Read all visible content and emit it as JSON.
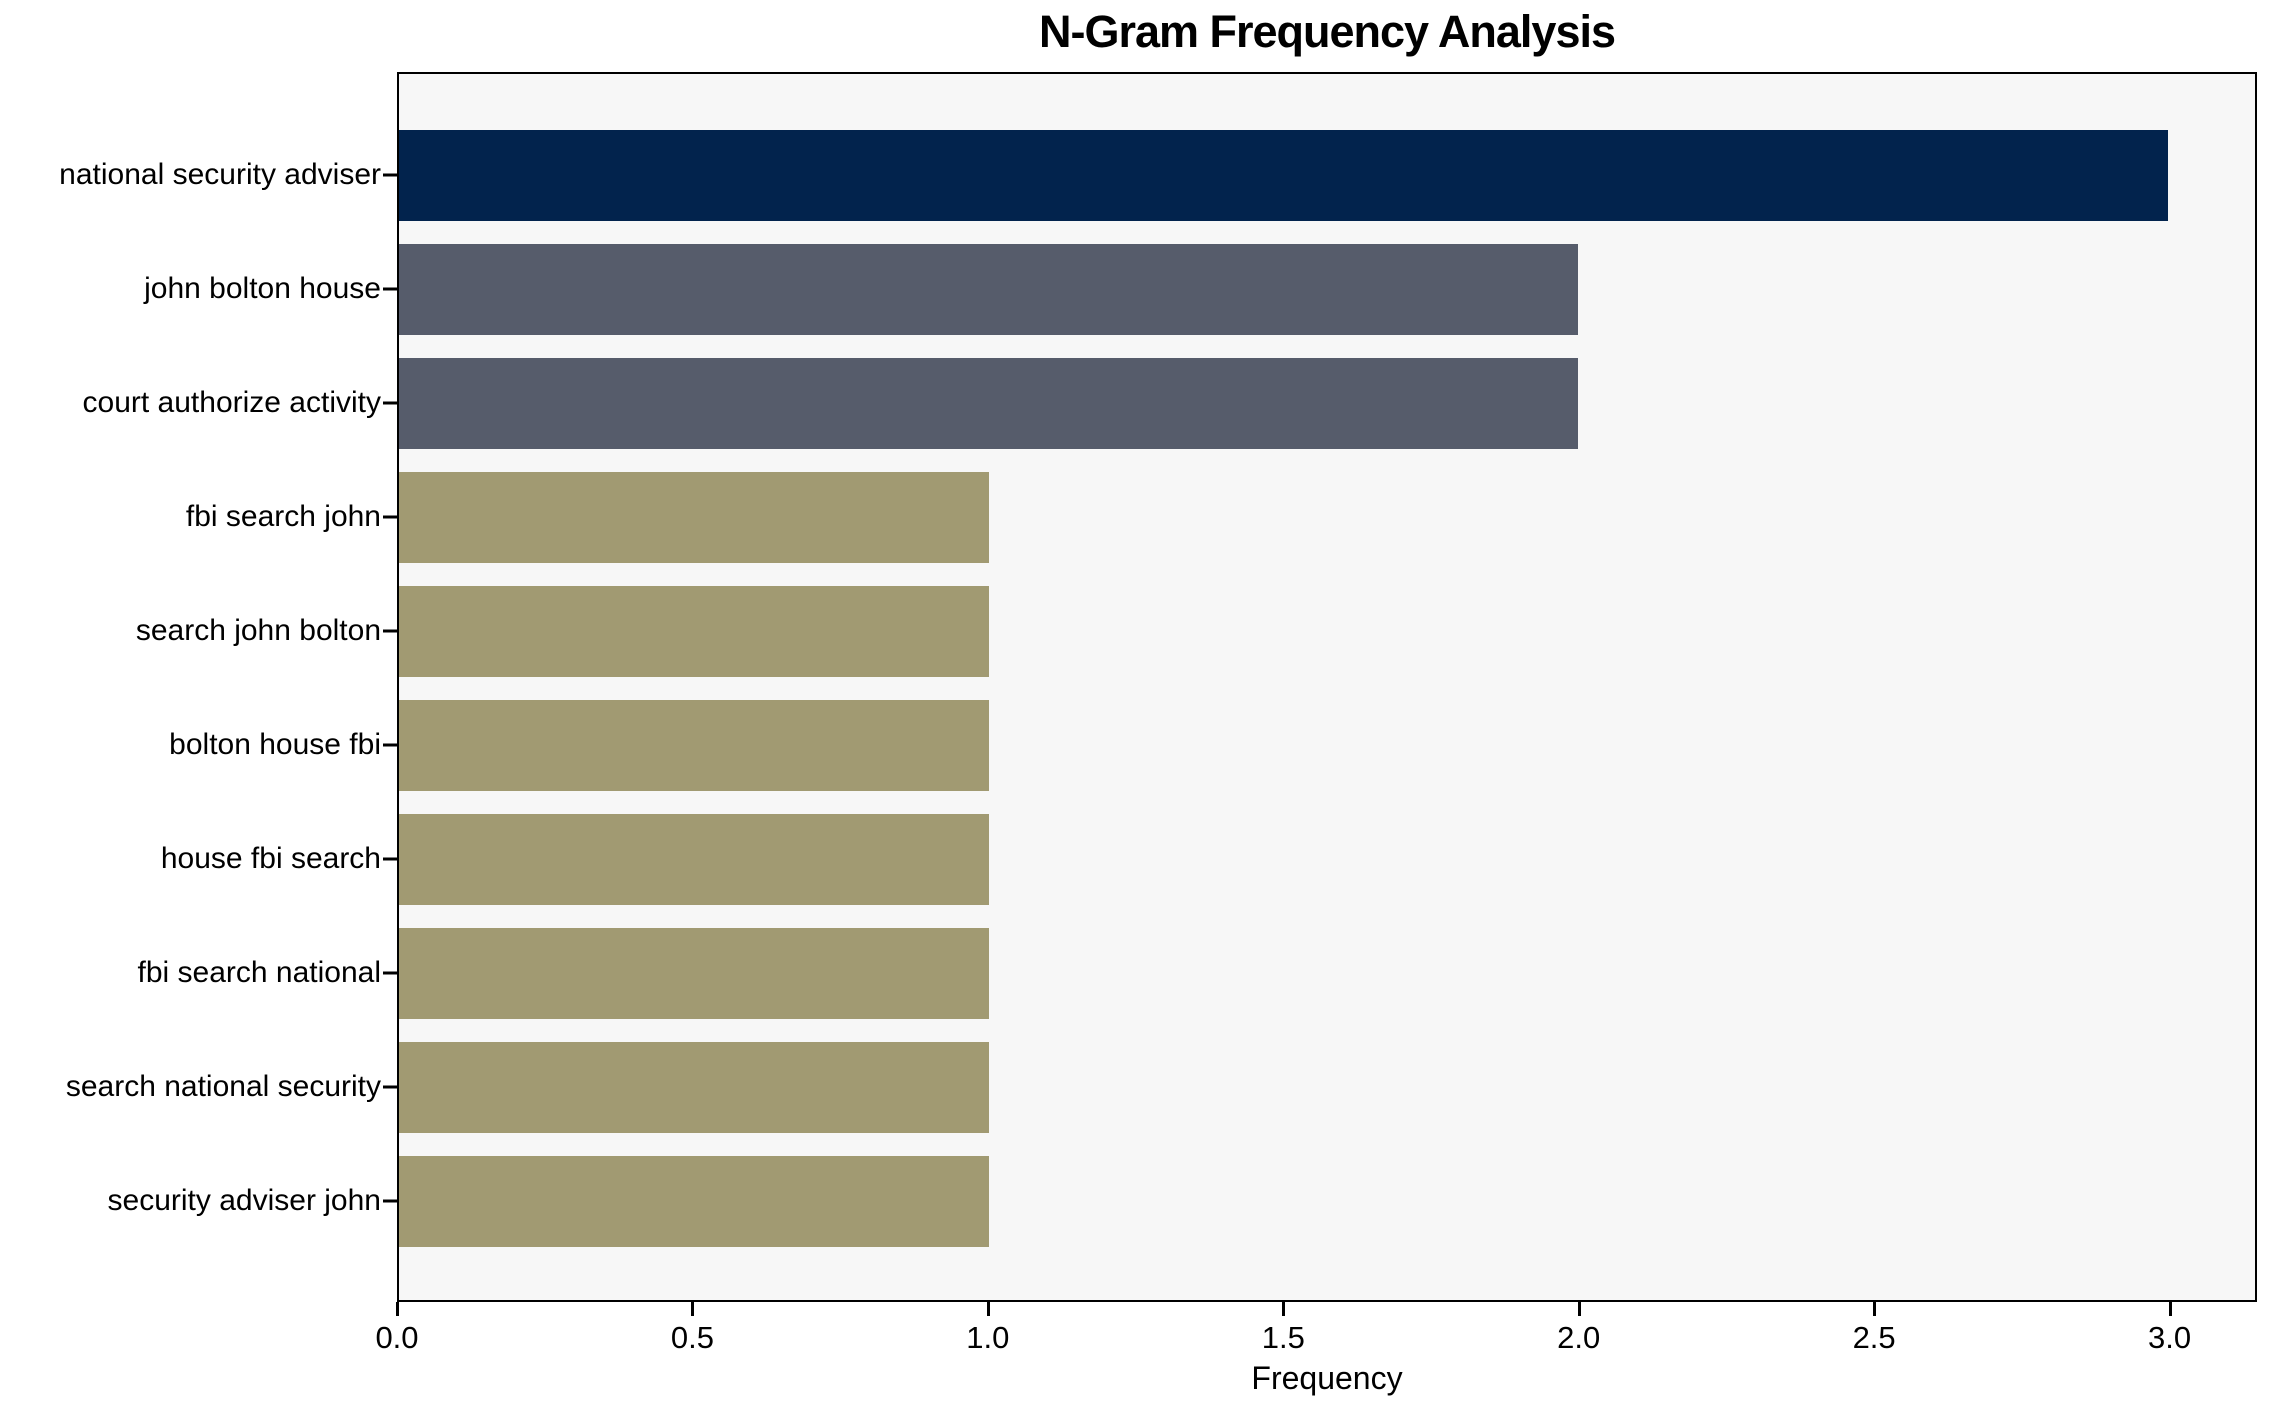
{
  "chart_data": {
    "type": "bar",
    "orientation": "horizontal",
    "title": "N-Gram Frequency Analysis",
    "xlabel": "Frequency",
    "ylabel": "",
    "categories": [
      "national security adviser",
      "john bolton house",
      "court authorize activity",
      "fbi search john",
      "search john bolton",
      "bolton house fbi",
      "house fbi search",
      "fbi search national",
      "search national security",
      "security adviser john"
    ],
    "values": [
      3,
      2,
      2,
      1,
      1,
      1,
      1,
      1,
      1,
      1
    ],
    "bar_colors": [
      "#02234d",
      "#565c6b",
      "#565c6b",
      "#a19a72",
      "#a19a72",
      "#a19a72",
      "#a19a72",
      "#a19a72",
      "#a19a72",
      "#a19a72"
    ],
    "xlim": [
      0,
      3.148
    ],
    "xtick_labels": [
      "0.0",
      "0.5",
      "1.0",
      "1.5",
      "2.0",
      "2.5",
      "3.0"
    ],
    "xtick_values": [
      0,
      0.5,
      1.0,
      1.5,
      2.0,
      2.5,
      3.0
    ],
    "grid": "off",
    "legend": "none",
    "plot_bg": "#f7f7f7",
    "figure_bg": "#ffffff",
    "spine_color": "#000000"
  }
}
